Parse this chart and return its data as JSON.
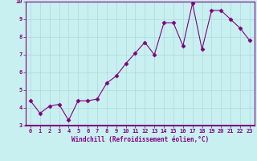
{
  "x": [
    0,
    1,
    2,
    3,
    4,
    5,
    6,
    7,
    8,
    9,
    10,
    11,
    12,
    13,
    14,
    15,
    16,
    17,
    18,
    19,
    20,
    21,
    22,
    23
  ],
  "y": [
    4.4,
    3.7,
    4.1,
    4.2,
    3.3,
    4.4,
    4.4,
    4.5,
    5.4,
    5.8,
    6.5,
    7.1,
    7.7,
    7.0,
    8.8,
    8.8,
    7.5,
    9.9,
    7.3,
    9.5,
    9.5,
    9.0,
    8.5,
    7.8
  ],
  "line_color": "#800080",
  "marker": "D",
  "marker_size": 2.5,
  "bg_color": "#c8f0f0",
  "grid_color": "#b0d8d8",
  "xlabel": "Windchill (Refroidissement éolien,°C)",
  "xlim": [
    -0.5,
    23.5
  ],
  "ylim": [
    3,
    10
  ],
  "yticks": [
    3,
    4,
    5,
    6,
    7,
    8,
    9,
    10
  ],
  "xticks": [
    0,
    1,
    2,
    3,
    4,
    5,
    6,
    7,
    8,
    9,
    10,
    11,
    12,
    13,
    14,
    15,
    16,
    17,
    18,
    19,
    20,
    21,
    22,
    23
  ],
  "axis_color": "#800080",
  "font_color": "#800080"
}
